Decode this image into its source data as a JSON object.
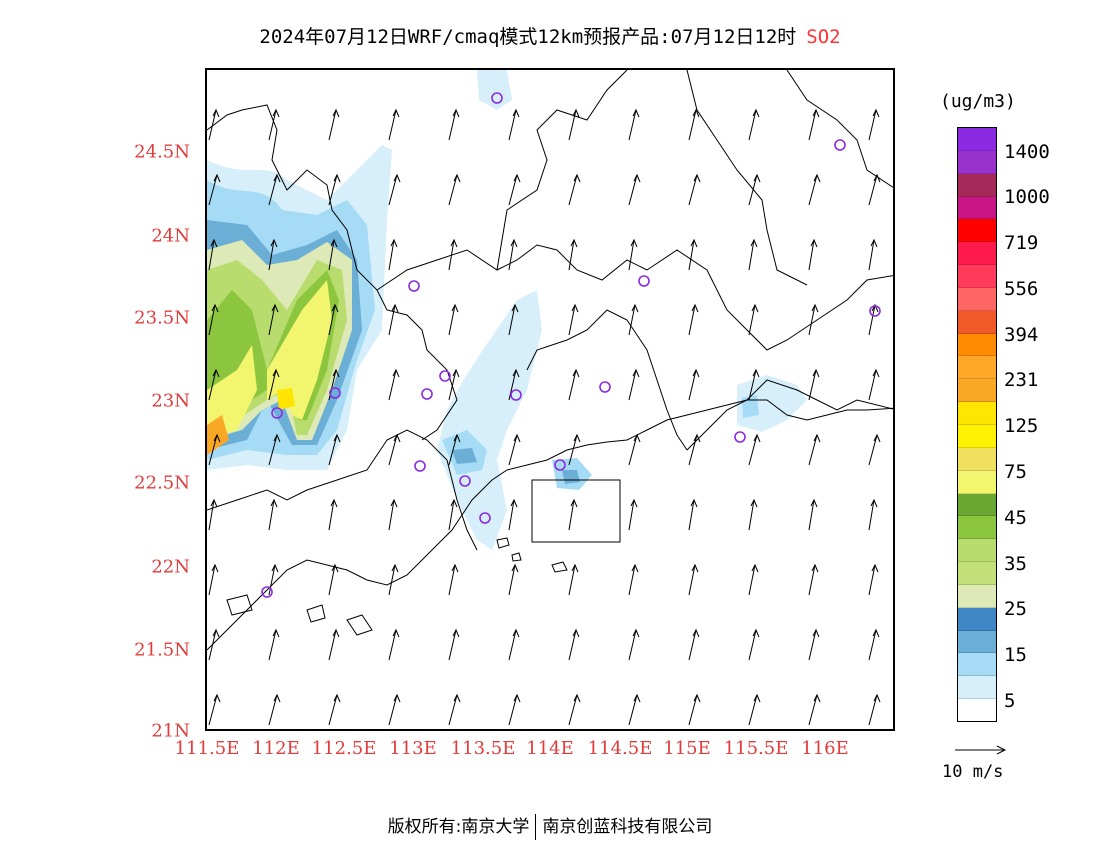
{
  "title": {
    "main": "2024年07月12日WRF/cmaq模式12km预报产品:07月12日12时",
    "species": "SO2",
    "species_color": "#ff3333"
  },
  "axes": {
    "lat_labels": [
      "24.5N",
      "24N",
      "23.5N",
      "23N",
      "22.5N",
      "22N",
      "21.5N",
      "21N"
    ],
    "lon_labels": [
      "111.5E",
      "112E",
      "112.5E",
      "113E",
      "113.5E",
      "114E",
      "114.5E",
      "115E",
      "115.5E",
      "116E"
    ],
    "label_color": "#e23b3b"
  },
  "legend": {
    "unit": "(ug/m3)",
    "colors_top_to_bottom": [
      "#8a2be2",
      "#9932cc",
      "#a52a5a",
      "#c71585",
      "#ff0000",
      "#ff1a4d",
      "#ff3a5a",
      "#ff6666",
      "#f05a28",
      "#ff8c00",
      "#ffa726",
      "#f9a825",
      "#ffe600",
      "#fff200",
      "#f0e060",
      "#f2f56e",
      "#6aa632",
      "#8cc63f",
      "#b8dc6e",
      "#c4e07a",
      "#dde9b7",
      "#3f88c5",
      "#6baed6",
      "#a6dbf5",
      "#d6effa",
      "#ffffff"
    ],
    "labels": [
      "1400",
      "1000",
      "719",
      "556",
      "394",
      "231",
      "125",
      "75",
      "45",
      "35",
      "25",
      "15",
      "5"
    ]
  },
  "wind_reference": {
    "label": "10 m/s"
  },
  "stations_color": "#8a2be2",
  "copyright": {
    "left": "版权所有:南京大学",
    "right": "南京创蓝科技有限公司"
  }
}
